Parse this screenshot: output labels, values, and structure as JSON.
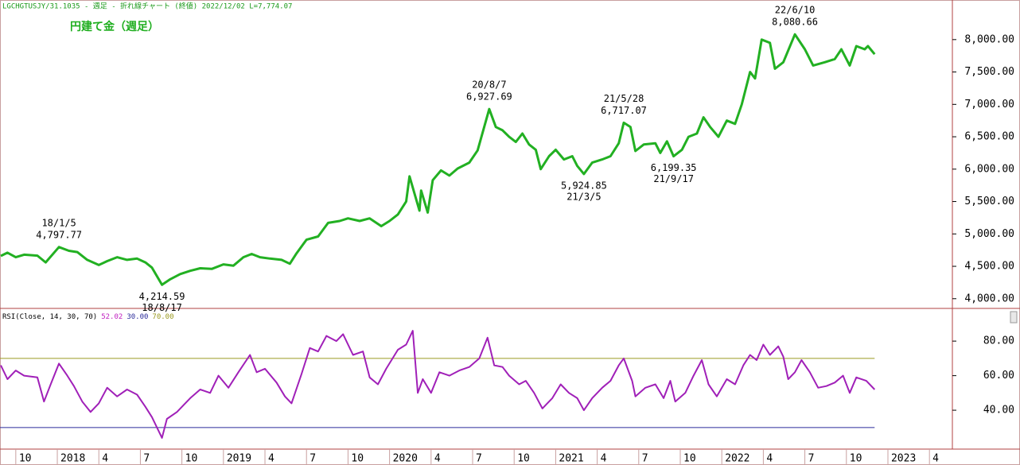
{
  "chart_data": [
    {
      "type": "line",
      "subtitle": "LGCHGTUSJY/31.1035 - 週足 - 折れ線チャート (終値)  2022/12/02 L=7,774.07",
      "title": "円建て金（週足）",
      "xlim": [
        2017.655,
        2023.388
      ],
      "ylim": [
        3850,
        8550
      ],
      "yticks": [
        {
          "value": 4000,
          "label": "4,000.00"
        },
        {
          "value": 4500,
          "label": "4,500.00"
        },
        {
          "value": 5000,
          "label": "5,000.00"
        },
        {
          "value": 5500,
          "label": "5,500.00"
        },
        {
          "value": 6000,
          "label": "6,000.00"
        },
        {
          "value": 6500,
          "label": "6,500.00"
        },
        {
          "value": 7000,
          "label": "7,000.00"
        },
        {
          "value": 7500,
          "label": "7,500.00"
        },
        {
          "value": 8000,
          "label": "8,000.00"
        }
      ],
      "series": [
        {
          "color": "#22b022",
          "x": [
            2017.66,
            2017.7,
            2017.75,
            2017.8,
            2017.88,
            2017.93,
            2018.01,
            2018.07,
            2018.12,
            2018.18,
            2018.25,
            2018.3,
            2018.36,
            2018.42,
            2018.48,
            2018.53,
            2018.57,
            2018.63,
            2018.68,
            2018.74,
            2018.8,
            2018.86,
            2018.93,
            2019.0,
            2019.06,
            2019.12,
            2019.17,
            2019.22,
            2019.28,
            2019.35,
            2019.4,
            2019.44,
            2019.5,
            2019.57,
            2019.63,
            2019.7,
            2019.75,
            2019.82,
            2019.88,
            2019.95,
            2020.0,
            2020.05,
            2020.1,
            2020.12,
            2020.18,
            2020.19,
            2020.23,
            2020.26,
            2020.31,
            2020.36,
            2020.41,
            2020.48,
            2020.53,
            2020.6,
            2020.64,
            2020.68,
            2020.72,
            2020.76,
            2020.8,
            2020.84,
            2020.88,
            2020.91,
            2020.96,
            2021.0,
            2021.05,
            2021.1,
            2021.13,
            2021.17,
            2021.22,
            2021.28,
            2021.33,
            2021.38,
            2021.41,
            2021.45,
            2021.48,
            2021.53,
            2021.6,
            2021.63,
            2021.67,
            2021.71,
            2021.76,
            2021.8,
            2021.85,
            2021.89,
            2021.93,
            2021.98,
            2022.03,
            2022.08,
            2022.12,
            2022.17,
            2022.2,
            2022.24,
            2022.29,
            2022.32,
            2022.37,
            2022.44,
            2022.5,
            2022.55,
            2022.62,
            2022.68,
            2022.72,
            2022.77,
            2022.81,
            2022.86,
            2022.88,
            2022.92
          ],
          "values": [
            4660,
            4710,
            4640,
            4680,
            4665,
            4560,
            4797.77,
            4740,
            4720,
            4600,
            4520,
            4580,
            4640,
            4600,
            4620,
            4560,
            4480,
            4214.59,
            4300,
            4380,
            4430,
            4470,
            4460,
            4530,
            4510,
            4640,
            4690,
            4640,
            4620,
            4600,
            4540,
            4700,
            4910,
            4960,
            5170,
            5200,
            5240,
            5200,
            5240,
            5120,
            5200,
            5300,
            5500,
            5890,
            5360,
            5670,
            5330,
            5830,
            5980,
            5900,
            6010,
            6100,
            6290,
            6927.69,
            6650,
            6600,
            6500,
            6420,
            6550,
            6380,
            6300,
            6000,
            6200,
            6300,
            6150,
            6200,
            6050,
            5924.85,
            6100,
            6150,
            6200,
            6400,
            6717.07,
            6650,
            6280,
            6380,
            6400,
            6250,
            6430,
            6199.35,
            6300,
            6500,
            6550,
            6800,
            6650,
            6500,
            6750,
            6700,
            7000,
            7500,
            7400,
            8000,
            7950,
            7550,
            7650,
            8080.66,
            7850,
            7600,
            7650,
            7700,
            7850,
            7600,
            7900,
            7850,
            7900,
            7774.07
          ]
        }
      ],
      "annotations": [
        {
          "date": "18/1/5",
          "x": 2018.01,
          "value": 4797.77,
          "label": "4,797.77",
          "side": "above"
        },
        {
          "date": "18/8/17",
          "x": 2018.63,
          "value": 4214.59,
          "label": "4,214.59",
          "side": "below"
        },
        {
          "date": "20/8/7",
          "x": 2020.6,
          "value": 6927.69,
          "label": "6,927.69",
          "side": "above"
        },
        {
          "date": "21/3/5",
          "x": 2021.17,
          "value": 5924.85,
          "label": "5,924.85",
          "side": "below"
        },
        {
          "date": "21/5/28",
          "x": 2021.41,
          "value": 6717.07,
          "label": "6,717.07",
          "side": "above"
        },
        {
          "date": "21/9/17",
          "x": 2021.71,
          "value": 6199.35,
          "label": "6,199.35",
          "side": "below"
        },
        {
          "date": "22/6/10",
          "x": 2022.44,
          "value": 8080.66,
          "label": "8,080.66",
          "side": "above"
        }
      ]
    },
    {
      "type": "line",
      "title": "RSI(Close, 14, 30, 70)",
      "last_label": "52.02",
      "xlim": [
        2017.655,
        2023.388
      ],
      "ylim": [
        17.5,
        98
      ],
      "yticks": [
        {
          "value": 40,
          "label": "40.00"
        },
        {
          "value": 60,
          "label": "60.00"
        },
        {
          "value": 80,
          "label": "80.00"
        }
      ],
      "levels": [
        {
          "value": 30,
          "label": "30.00",
          "color": "#2b2b9a"
        },
        {
          "value": 70,
          "label": "70.00",
          "color": "#9a9a20"
        }
      ],
      "xticks": [
        {
          "value": 2017.75,
          "label": "10"
        },
        {
          "value": 2018.0,
          "label": "2018"
        },
        {
          "value": 2018.25,
          "label": "4"
        },
        {
          "value": 2018.5,
          "label": "7"
        },
        {
          "value": 2018.75,
          "label": "10"
        },
        {
          "value": 2019.0,
          "label": "2019"
        },
        {
          "value": 2019.25,
          "label": "4"
        },
        {
          "value": 2019.5,
          "label": "7"
        },
        {
          "value": 2019.75,
          "label": "10"
        },
        {
          "value": 2020.0,
          "label": "2020"
        },
        {
          "value": 2020.25,
          "label": "4"
        },
        {
          "value": 2020.5,
          "label": "7"
        },
        {
          "value": 2020.75,
          "label": "10"
        },
        {
          "value": 2021.0,
          "label": "2021"
        },
        {
          "value": 2021.25,
          "label": "4"
        },
        {
          "value": 2021.5,
          "label": "7"
        },
        {
          "value": 2021.75,
          "label": "10"
        },
        {
          "value": 2022.0,
          "label": "2022"
        },
        {
          "value": 2022.25,
          "label": "4"
        },
        {
          "value": 2022.5,
          "label": "7"
        },
        {
          "value": 2022.75,
          "label": "10"
        },
        {
          "value": 2023.0,
          "label": "2023"
        },
        {
          "value": 2023.25,
          "label": "4"
        }
      ],
      "series": [
        {
          "color": "#a020b8",
          "x": [
            2017.66,
            2017.7,
            2017.75,
            2017.8,
            2017.88,
            2017.92,
            2017.96,
            2018.01,
            2018.06,
            2018.1,
            2018.15,
            2018.2,
            2018.25,
            2018.3,
            2018.36,
            2018.42,
            2018.48,
            2018.53,
            2018.57,
            2018.63,
            2018.66,
            2018.72,
            2018.8,
            2018.86,
            2018.92,
            2018.97,
            2019.03,
            2019.09,
            2019.16,
            2019.2,
            2019.25,
            2019.32,
            2019.37,
            2019.41,
            2019.47,
            2019.52,
            2019.57,
            2019.62,
            2019.68,
            2019.72,
            2019.78,
            2019.84,
            2019.88,
            2019.93,
            2019.98,
            2020.05,
            2020.1,
            2020.14,
            2020.17,
            2020.2,
            2020.25,
            2020.3,
            2020.36,
            2020.42,
            2020.48,
            2020.54,
            2020.59,
            2020.63,
            2020.68,
            2020.72,
            2020.78,
            2020.82,
            2020.87,
            2020.92,
            2020.98,
            2021.03,
            2021.08,
            2021.13,
            2021.17,
            2021.22,
            2021.28,
            2021.33,
            2021.38,
            2021.41,
            2021.46,
            2021.48,
            2021.54,
            2021.6,
            2021.65,
            2021.69,
            2021.72,
            2021.78,
            2021.83,
            2021.88,
            2021.92,
            2021.97,
            2022.03,
            2022.08,
            2022.13,
            2022.17,
            2022.21,
            2022.25,
            2022.29,
            2022.34,
            2022.37,
            2022.4,
            2022.44,
            2022.48,
            2022.53,
            2022.58,
            2022.63,
            2022.68,
            2022.73,
            2022.77,
            2022.81,
            2022.87,
            2022.92
          ],
          "values": [
            66,
            58,
            63,
            60,
            59,
            45,
            55,
            67,
            60,
            54,
            45,
            39,
            44,
            53,
            48,
            52,
            49,
            42,
            36,
            24,
            35,
            39,
            47,
            52,
            50,
            60,
            53,
            62,
            72,
            62,
            64,
            56,
            48,
            44,
            61,
            76,
            74,
            83,
            80,
            84,
            72,
            74,
            59,
            55,
            64,
            75,
            78,
            86,
            50,
            58,
            50,
            62,
            60,
            63,
            65,
            70,
            82,
            66,
            65,
            60,
            55,
            57,
            50,
            41,
            47,
            55,
            50,
            47,
            40,
            47,
            53,
            57,
            66,
            70,
            57,
            48,
            53,
            55,
            47,
            57,
            45,
            50,
            60,
            69,
            55,
            48,
            58,
            55,
            66,
            72,
            69,
            78,
            72,
            77,
            71,
            58,
            62,
            69,
            62,
            53,
            54,
            56,
            60,
            50,
            59,
            57,
            52.02
          ]
        }
      ]
    }
  ]
}
